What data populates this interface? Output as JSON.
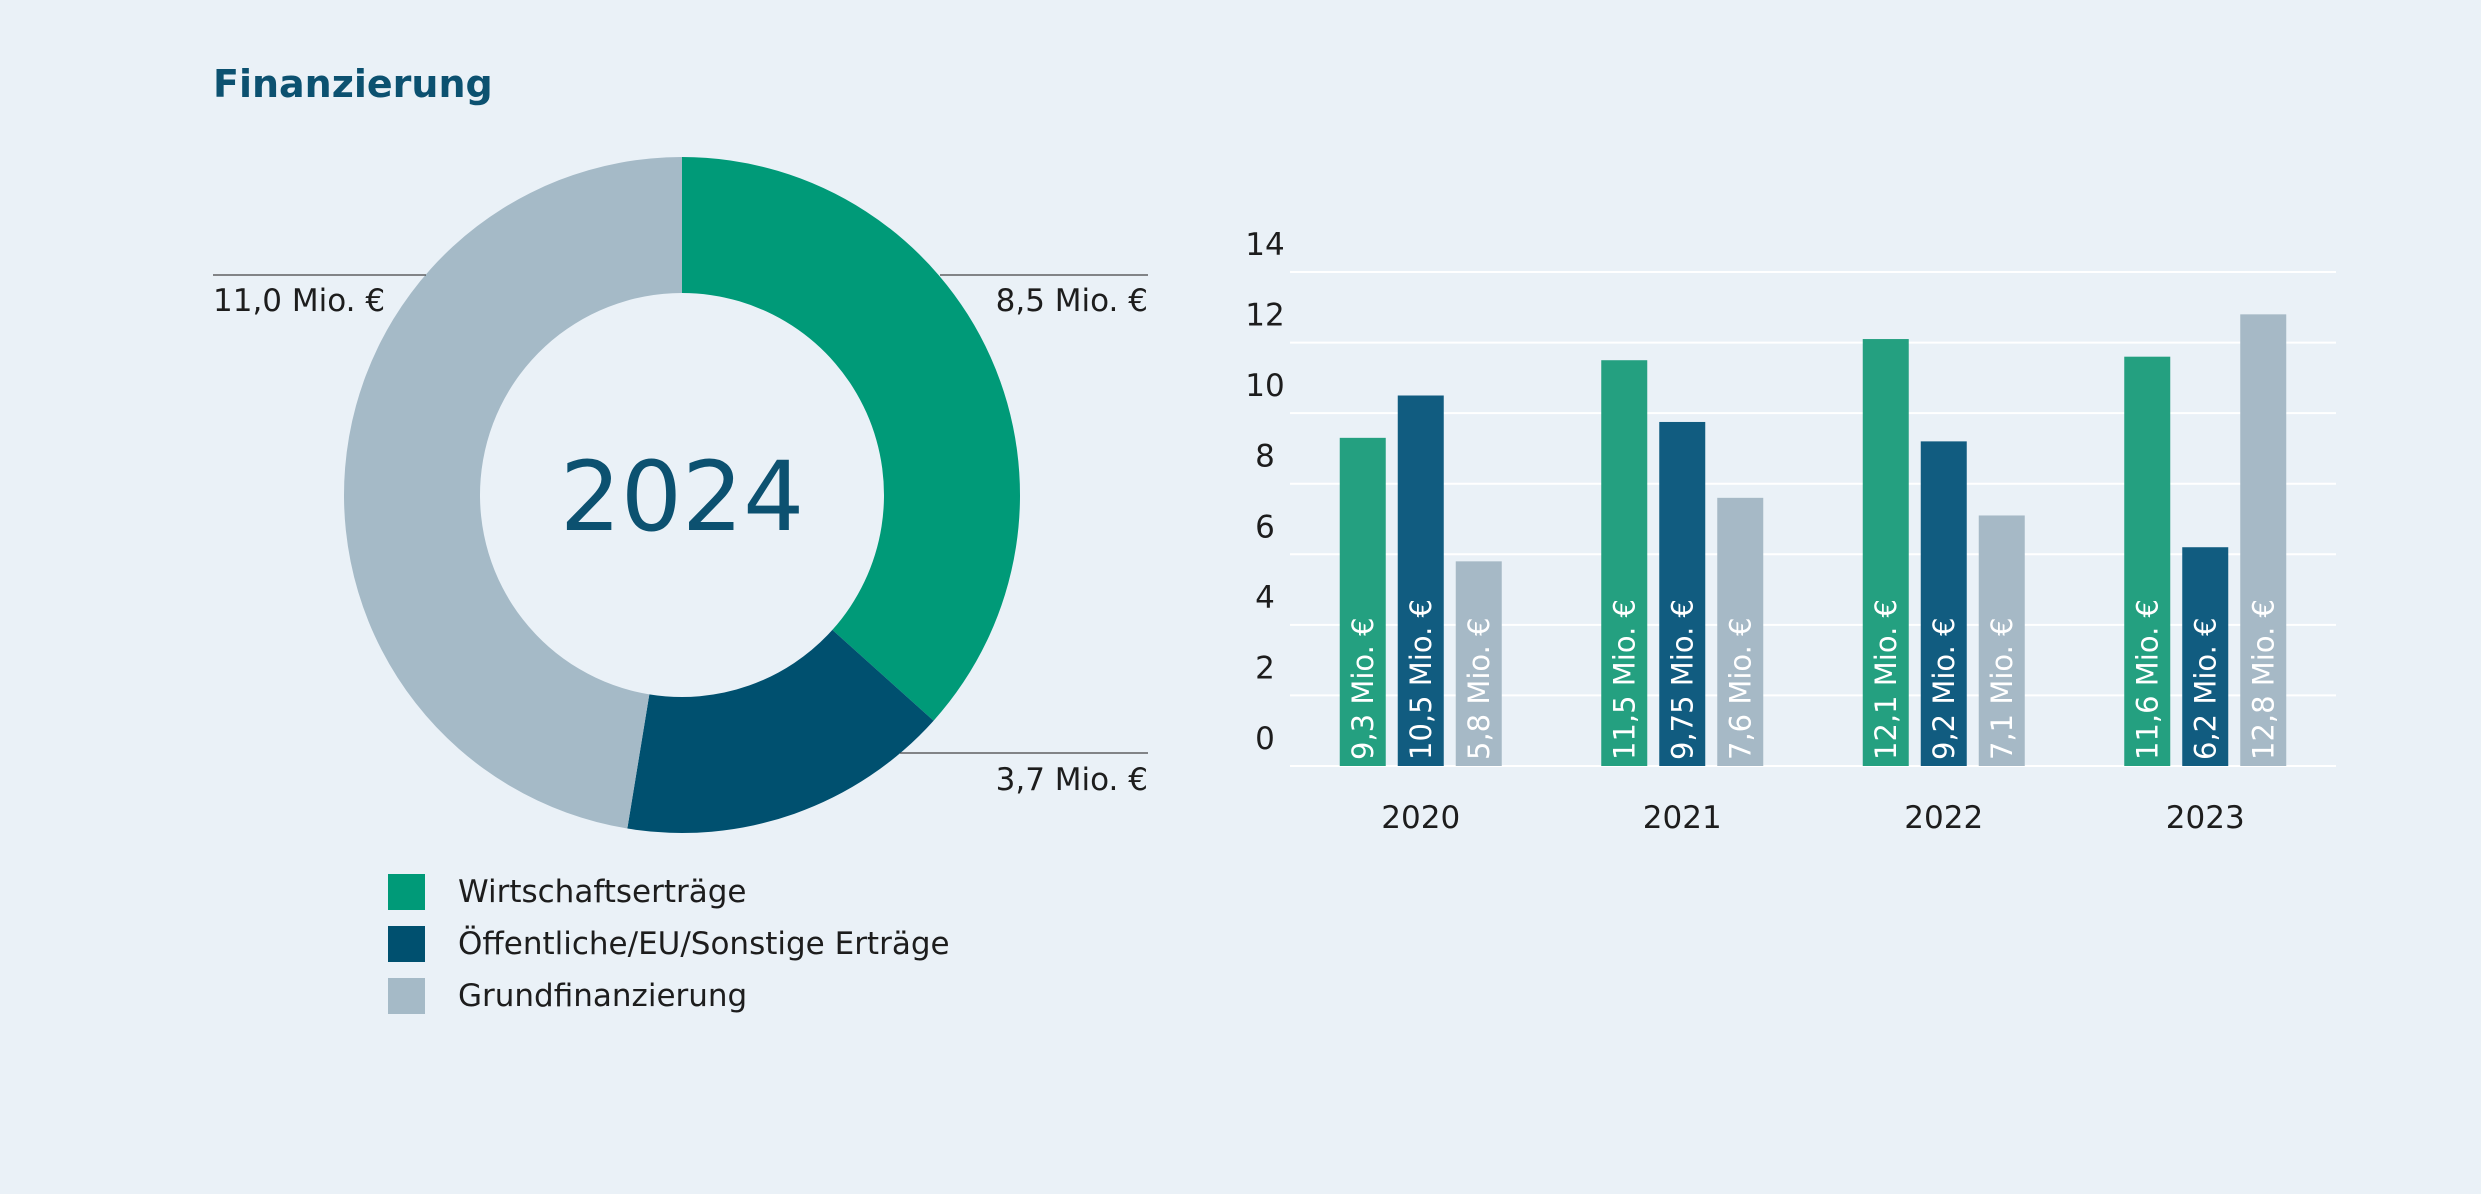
{
  "title": "Finanzierung",
  "colors": {
    "background": "#eaf1f7",
    "title": "#0c5170",
    "center_text": "#0c5170",
    "gridline": "#ffffff"
  },
  "chart_data": [
    {
      "type": "pie",
      "variant": "donut",
      "center_label": "2024",
      "slices": [
        {
          "series": "Wirtschaftserträge",
          "value": 8.5,
          "label": "8,5 Mio. €",
          "color": "#009a78"
        },
        {
          "series": "Öffentliche/EU/Sonstige Erträge",
          "value": 3.7,
          "label": "3,7 Mio. €",
          "color": "#00506f"
        },
        {
          "series": "Grundfinanzierung",
          "value": 11.0,
          "label": "11,0 Mio. €",
          "color": "#a5bac7"
        }
      ]
    },
    {
      "type": "bar",
      "categories": [
        "2020",
        "2021",
        "2022",
        "2023"
      ],
      "ylim": [
        0,
        14
      ],
      "yticks": [
        0,
        2,
        4,
        6,
        8,
        10,
        12,
        14
      ],
      "grid": true,
      "series": [
        {
          "name": "Wirtschaftserträge",
          "color": "#24a080",
          "values": [
            9.3,
            11.5,
            12.1,
            11.6
          ],
          "labels": [
            "9,3 Mio. €",
            "11,5 Mio. €",
            "12,1 Mio. €",
            "11,6 Mio. €"
          ]
        },
        {
          "name": "Öffentliche/EU/Sonstige Erträge",
          "color": "#115c80",
          "values": [
            10.5,
            9.75,
            9.2,
            6.2
          ],
          "labels": [
            "10,5 Mio. €",
            "9,75 Mio. €",
            "9,2 Mio. €",
            "6,2 Mio. €"
          ]
        },
        {
          "name": "Grundfinanzierung",
          "color": "#a6b9c6",
          "values": [
            5.8,
            7.6,
            7.1,
            12.8
          ],
          "labels": [
            "5,8 Mio. €",
            "7,6 Mio. €",
            "7,1 Mio. €",
            "12,8 Mio. €"
          ]
        }
      ]
    }
  ],
  "legend": [
    {
      "label": "Wirtschaftserträge",
      "color": "#009a78"
    },
    {
      "label": "Öffentliche/EU/Sonstige Erträge",
      "color": "#00506f"
    },
    {
      "label": "Grundfinanzierung",
      "color": "#a5bac7"
    }
  ]
}
